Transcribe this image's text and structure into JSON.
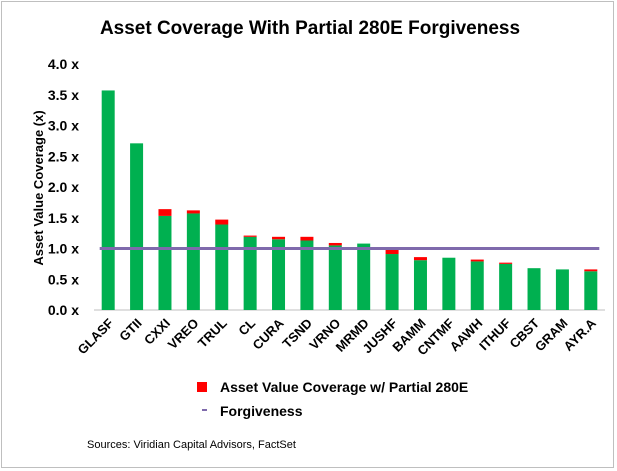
{
  "chart_data": {
    "type": "bar",
    "stacked": true,
    "title": "Asset Coverage With Partial 280E Forgiveness",
    "ylabel": "Asset Value Coverage (x)",
    "xlabel": "",
    "ylim": [
      0,
      4
    ],
    "yticks": [
      0,
      0.5,
      1.0,
      1.5,
      2.0,
      2.5,
      3.0,
      3.5,
      4.0
    ],
    "ytick_labels": [
      "0.0 x",
      "0.5 x",
      "1.0 x",
      "1.5 x",
      "2.0 x",
      "2.5 x",
      "3.0 x",
      "3.5 x",
      "4.0 x"
    ],
    "categories": [
      "GLASF",
      "GTII",
      "CXXI",
      "VREO",
      "TRUL",
      "CL",
      "CURA",
      "TSND",
      "VRNO",
      "MRMD",
      "JUSHF",
      "BAMM",
      "CNTMF",
      "AAWH",
      "ITHUF",
      "CBST",
      "GRAM",
      "AYR.A"
    ],
    "series": [
      {
        "values": [
          3.57,
          2.71,
          1.53,
          1.57,
          1.39,
          1.19,
          1.15,
          1.13,
          1.05,
          1.08,
          0.91,
          0.81,
          0.85,
          0.79,
          0.75,
          0.68,
          0.66,
          0.63
        ],
        "color": "#00b050"
      },
      {
        "name": "Asset Value Coverage w/ Partial 280E Forgiveness",
        "values": [
          0,
          0,
          0.11,
          0.05,
          0.08,
          0.02,
          0.04,
          0.06,
          0.04,
          0,
          0.08,
          0.05,
          0,
          0.03,
          0.02,
          0,
          0,
          0.03
        ],
        "color": "#ff0000"
      }
    ],
    "reference_line": {
      "value": 1.0,
      "color": "#7f6aac"
    },
    "legend": {
      "placement": "bottom",
      "lines": [
        "Asset Value Coverage w/ Partial 280E",
        "Forgiveness"
      ]
    },
    "grid": false,
    "source_note": "Sources: Viridian Capital Advisors, FactSet"
  }
}
